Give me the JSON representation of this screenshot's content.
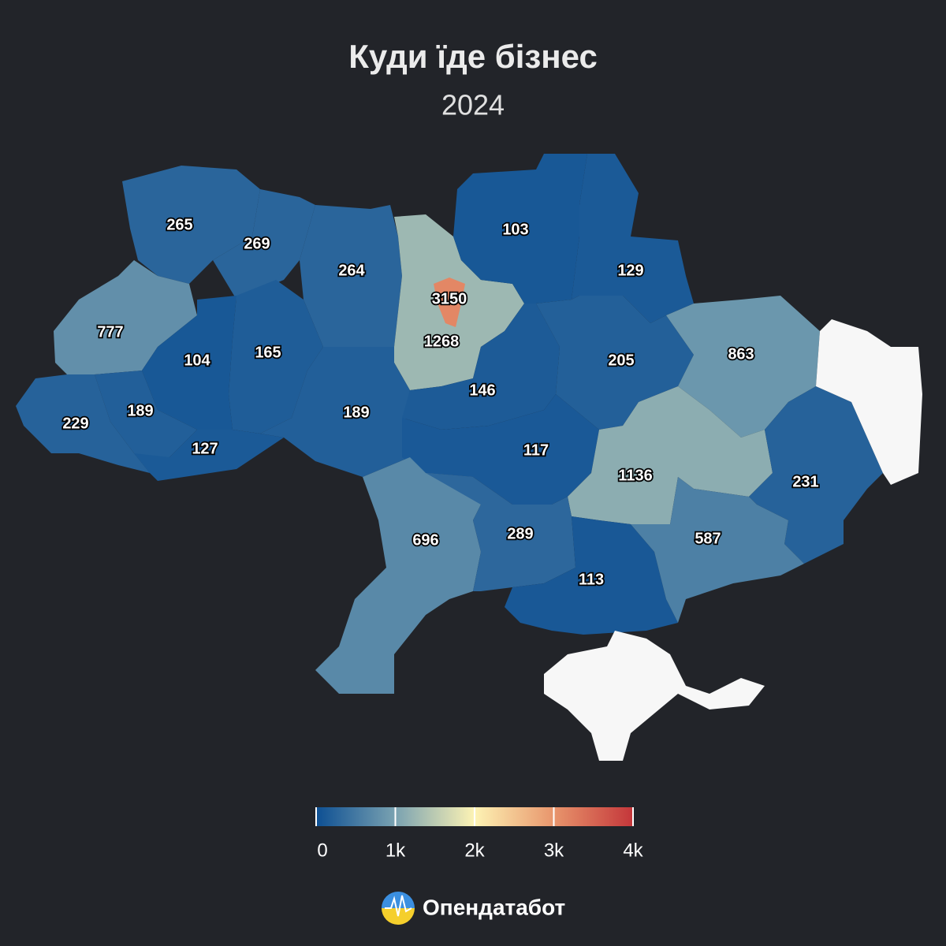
{
  "chart_data": {
    "type": "choropleth",
    "title": "Куди їде бізнес",
    "subtitle": "2024",
    "values": [
      265,
      269,
      264,
      1268,
      3150,
      103,
      129,
      777,
      104,
      165,
      189,
      189,
      229,
      127,
      146,
      205,
      863,
      117,
      1136,
      231,
      696,
      289,
      113,
      587
    ],
    "clim": [
      0,
      4000
    ],
    "cticks": [
      0,
      {
        "value": 1000,
        "label": "1k"
      },
      {
        "value": 2000,
        "label": "2k"
      },
      {
        "value": 3000,
        "label": "3k"
      },
      {
        "value": 4000,
        "label": "4k"
      }
    ],
    "colorscale": [
      [
        0,
        "#0d4f93"
      ],
      [
        1000,
        "#7aa2b1"
      ],
      [
        2000,
        "#fdf3b4"
      ],
      [
        3000,
        "#e8956c"
      ],
      [
        4000,
        "#c4363a"
      ]
    ]
  },
  "footer": {
    "brand": "Опендатабот"
  }
}
